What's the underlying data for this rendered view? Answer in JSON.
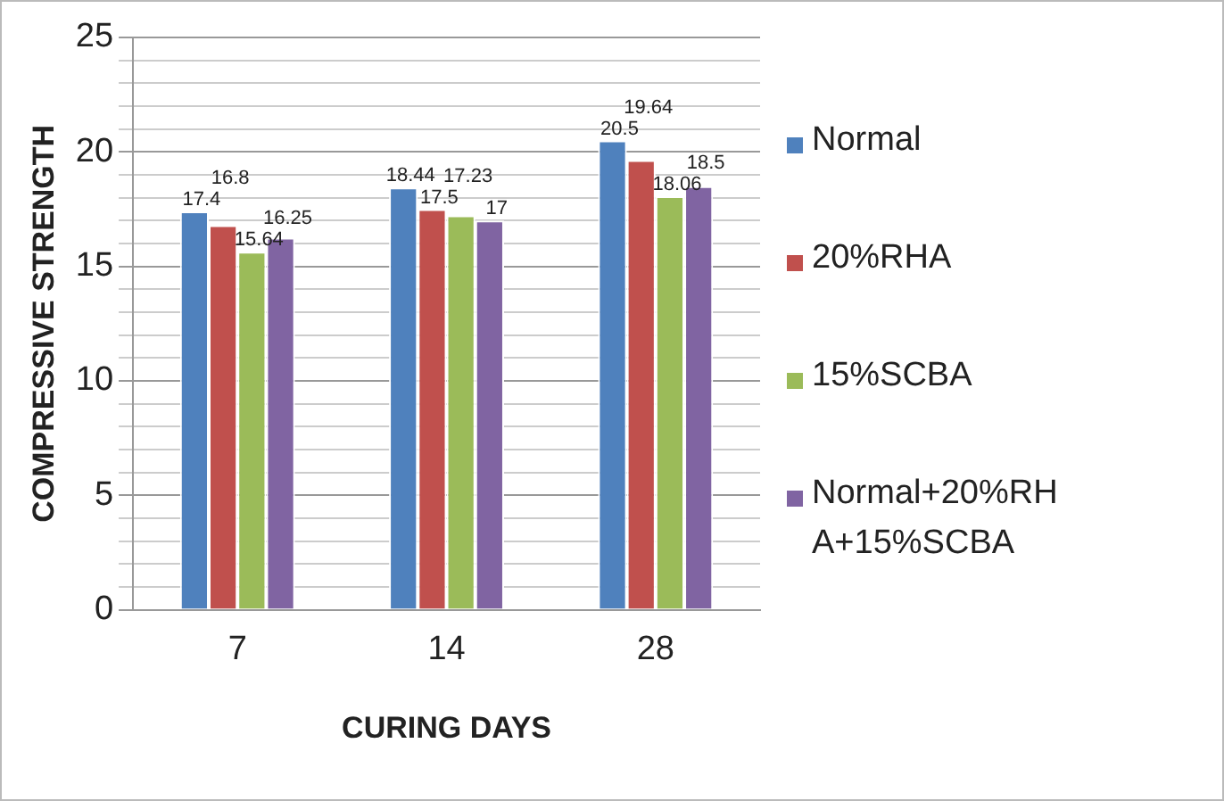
{
  "chart_data": {
    "type": "bar",
    "xlabel": "CURING DAYS",
    "ylabel": "COMPRESSIVE STRENGTH",
    "categories": [
      "7",
      "14",
      "28"
    ],
    "series": [
      {
        "name": "Normal",
        "color": "#4f81bd",
        "values": [
          17.4,
          18.44,
          20.5
        ]
      },
      {
        "name": "20%RHA",
        "color": "#c0504d",
        "values": [
          16.8,
          17.5,
          19.64
        ]
      },
      {
        "name": "15%SCBA",
        "color": "#9bbb59",
        "values": [
          15.64,
          17.23,
          18.06
        ]
      },
      {
        "name": "Normal+20%RHA+15%SCBA",
        "color": "#8064a2",
        "values": [
          16.25,
          17,
          18.5
        ]
      }
    ],
    "ylim": [
      0,
      25
    ],
    "yticks": [
      0,
      {
        "value": 1,
        "label": null
      },
      {
        "value": 2,
        "label": null
      },
      {
        "value": 3,
        "label": null
      },
      {
        "value": 4,
        "label": null
      },
      5,
      {
        "value": 6,
        "label": null
      },
      {
        "value": 7,
        "label": null
      },
      {
        "value": 8,
        "label": null
      },
      {
        "value": 9,
        "label": null
      },
      10,
      {
        "value": 11,
        "label": null
      },
      {
        "value": 12,
        "label": null
      },
      {
        "value": 13,
        "label": null
      },
      {
        "value": 14,
        "label": null
      },
      15,
      {
        "value": 16,
        "label": null
      },
      {
        "value": 17,
        "label": null
      },
      {
        "value": 18,
        "label": null
      },
      {
        "value": 19,
        "label": null
      },
      20,
      {
        "value": 21,
        "label": null
      },
      {
        "value": 22,
        "label": null
      },
      {
        "value": 23,
        "label": null
      },
      {
        "value": 24,
        "label": null
      },
      25
    ],
    "grid": "y",
    "legend": "right",
    "data_labels": true
  }
}
